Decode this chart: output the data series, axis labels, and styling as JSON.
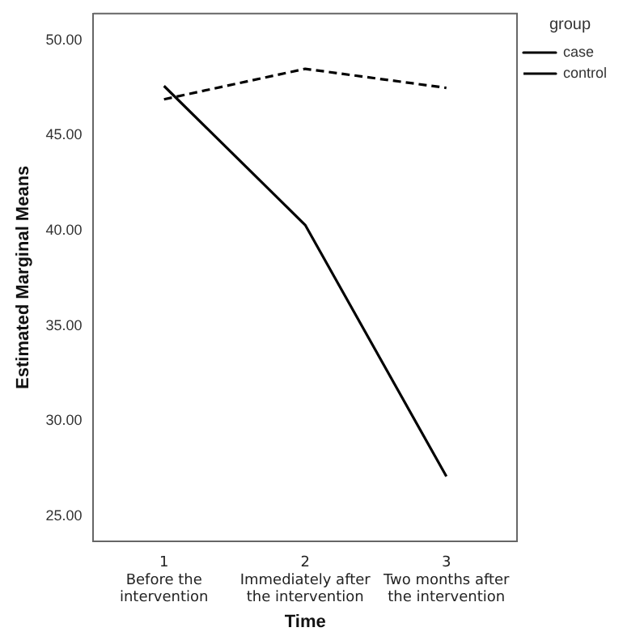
{
  "chart_data": {
    "type": "line",
    "xlabel": "Time",
    "ylabel": "Estimated Marginal Means",
    "legend_title": "group",
    "categories": [
      "1\nBefore the\nintervention",
      "2\nImmediately after\nthe intervention",
      "3\nTwo months after\nthe intervention"
    ],
    "series": [
      {
        "name": "case",
        "color": "#000000",
        "line_style": "solid",
        "values": [
          47.6,
          40.3,
          27.1
        ]
      },
      {
        "name": "control",
        "color": "#000000",
        "line_style": "dashed",
        "values": [
          46.9,
          48.5,
          47.5
        ]
      }
    ],
    "ylim": [
      23.7,
      51.4
    ],
    "yticks": [
      {
        "value": 25,
        "label": "25.00"
      },
      {
        "value": 30,
        "label": "30.00"
      },
      {
        "value": 35,
        "label": "35.00"
      },
      {
        "value": 40,
        "label": "40.00"
      },
      {
        "value": 45,
        "label": "45.00"
      },
      {
        "value": 50,
        "label": "50.00"
      }
    ],
    "grid": false,
    "legend": "top right",
    "marker": "none"
  }
}
